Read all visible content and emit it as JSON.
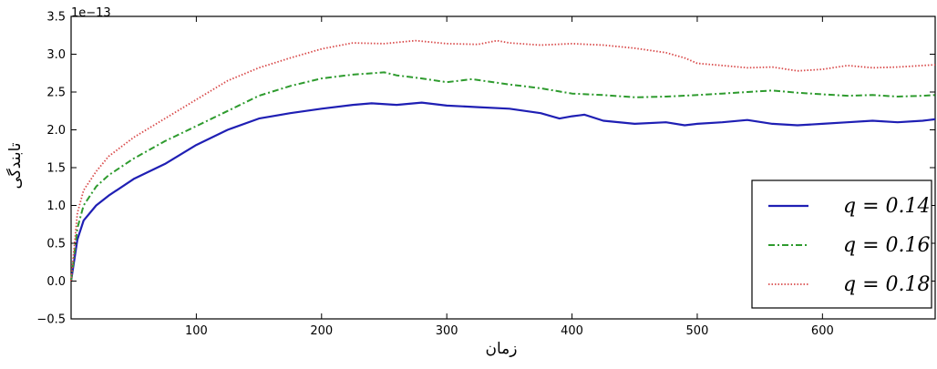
{
  "chart_data": {
    "type": "line",
    "title": "",
    "xlabel": "زمان",
    "ylabel": "تابندگی",
    "offset_label": "1e−13",
    "xlim": [
      0,
      690
    ],
    "ylim": [
      -0.5,
      3.5
    ],
    "xticks": [
      100,
      200,
      300,
      400,
      500,
      600
    ],
    "xtick_labels": [
      "100",
      "200",
      "300",
      "400",
      "500",
      "600"
    ],
    "yticks": [
      -0.5,
      0.0,
      0.5,
      1.0,
      1.5,
      2.0,
      2.5,
      3.0,
      3.5
    ],
    "ytick_labels": [
      "−0.5",
      "0.0",
      "0.5",
      "1.0",
      "1.5",
      "2.0",
      "2.5",
      "3.0",
      "3.5"
    ],
    "grid": false,
    "legend_position": "lower-right",
    "series": [
      {
        "name": "q = 0.14",
        "color": "#1f1fb4",
        "style": "solid",
        "x": [
          0,
          5,
          10,
          20,
          30,
          50,
          75,
          100,
          125,
          150,
          175,
          200,
          225,
          240,
          260,
          280,
          300,
          325,
          350,
          375,
          390,
          400,
          410,
          425,
          450,
          475,
          490,
          500,
          520,
          540,
          560,
          580,
          600,
          620,
          640,
          660,
          680,
          690
        ],
        "y": [
          0.0,
          0.55,
          0.8,
          1.0,
          1.13,
          1.35,
          1.55,
          1.8,
          2.0,
          2.15,
          2.22,
          2.28,
          2.33,
          2.35,
          2.33,
          2.36,
          2.32,
          2.3,
          2.28,
          2.22,
          2.15,
          2.18,
          2.2,
          2.12,
          2.08,
          2.1,
          2.06,
          2.08,
          2.1,
          2.13,
          2.08,
          2.06,
          2.08,
          2.1,
          2.12,
          2.1,
          2.12,
          2.14
        ]
      },
      {
        "name": "q = 0.16",
        "color": "#2e9b2e",
        "style": "dashdot",
        "x": [
          0,
          5,
          10,
          20,
          30,
          50,
          75,
          100,
          125,
          150,
          175,
          200,
          225,
          250,
          260,
          280,
          300,
          320,
          350,
          375,
          400,
          425,
          450,
          475,
          500,
          520,
          540,
          560,
          580,
          600,
          620,
          640,
          660,
          680,
          690
        ],
        "y": [
          0.0,
          0.7,
          1.0,
          1.25,
          1.4,
          1.62,
          1.85,
          2.05,
          2.25,
          2.45,
          2.58,
          2.68,
          2.73,
          2.76,
          2.72,
          2.68,
          2.63,
          2.67,
          2.6,
          2.55,
          2.48,
          2.46,
          2.43,
          2.44,
          2.46,
          2.48,
          2.5,
          2.52,
          2.49,
          2.47,
          2.45,
          2.46,
          2.44,
          2.45,
          2.46
        ]
      },
      {
        "name": "q = 0.18",
        "color": "#d94c4c",
        "style": "dotted",
        "x": [
          0,
          5,
          10,
          20,
          30,
          50,
          75,
          100,
          125,
          150,
          175,
          200,
          225,
          250,
          275,
          300,
          325,
          340,
          350,
          375,
          400,
          425,
          450,
          475,
          490,
          500,
          520,
          540,
          560,
          580,
          600,
          620,
          640,
          660,
          680,
          690
        ],
        "y": [
          0.0,
          0.9,
          1.2,
          1.45,
          1.65,
          1.9,
          2.15,
          2.4,
          2.65,
          2.82,
          2.95,
          3.07,
          3.15,
          3.14,
          3.18,
          3.14,
          3.13,
          3.18,
          3.15,
          3.12,
          3.14,
          3.12,
          3.08,
          3.02,
          2.95,
          2.88,
          2.85,
          2.82,
          2.83,
          2.78,
          2.8,
          2.85,
          2.82,
          2.83,
          2.85,
          2.86
        ]
      }
    ]
  }
}
